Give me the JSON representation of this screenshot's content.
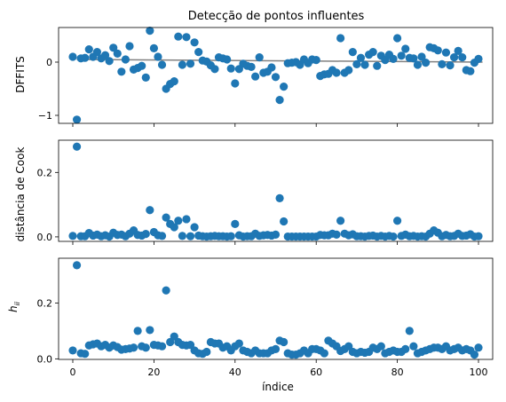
{
  "chart_data": [
    {
      "type": "scatter",
      "title": "Detecção de pontos influentes",
      "ylabel": "DFFITS",
      "xlabel": "",
      "xlim": [
        -3.5,
        103.5
      ],
      "ylim": [
        -1.15,
        0.65
      ],
      "xticks": [
        0,
        20,
        40,
        60,
        80,
        100
      ],
      "yticks": [
        -1,
        0
      ],
      "ytick_labels": [
        "−1",
        "0"
      ],
      "show_xtick_labels": false,
      "reference_line": {
        "x": [
          1,
          101
        ],
        "y": [
          0.05,
          0.0
        ]
      },
      "color": "#1f77b4",
      "points": [
        [
          0,
          0.1
        ],
        [
          1,
          -1.08
        ],
        [
          2,
          0.07
        ],
        [
          3,
          0.08
        ],
        [
          4,
          0.24
        ],
        [
          5,
          0.1
        ],
        [
          6,
          0.19
        ],
        [
          7,
          0.07
        ],
        [
          8,
          0.13
        ],
        [
          9,
          0.02
        ],
        [
          10,
          0.27
        ],
        [
          11,
          0.16
        ],
        [
          12,
          -0.18
        ],
        [
          13,
          0.05
        ],
        [
          14,
          0.3
        ],
        [
          15,
          -0.14
        ],
        [
          16,
          -0.11
        ],
        [
          17,
          -0.07
        ],
        [
          18,
          -0.29
        ],
        [
          19,
          0.59
        ],
        [
          20,
          0.26
        ],
        [
          21,
          0.1
        ],
        [
          22,
          -0.05
        ],
        [
          23,
          -0.5
        ],
        [
          24,
          -0.41
        ],
        [
          25,
          -0.36
        ],
        [
          26,
          0.48
        ],
        [
          27,
          -0.05
        ],
        [
          28,
          0.47
        ],
        [
          29,
          -0.03
        ],
        [
          30,
          0.37
        ],
        [
          31,
          0.19
        ],
        [
          32,
          0.03
        ],
        [
          33,
          0.01
        ],
        [
          34,
          -0.06
        ],
        [
          35,
          -0.13
        ],
        [
          36,
          0.09
        ],
        [
          37,
          0.07
        ],
        [
          38,
          0.05
        ],
        [
          39,
          -0.12
        ],
        [
          40,
          -0.4
        ],
        [
          41,
          -0.13
        ],
        [
          42,
          -0.03
        ],
        [
          43,
          -0.07
        ],
        [
          44,
          -0.09
        ],
        [
          45,
          -0.27
        ],
        [
          46,
          0.09
        ],
        [
          47,
          -0.2
        ],
        [
          48,
          -0.18
        ],
        [
          49,
          -0.1
        ],
        [
          50,
          -0.28
        ],
        [
          51,
          -0.71
        ],
        [
          52,
          -0.46
        ],
        [
          53,
          -0.02
        ],
        [
          54,
          -0.01
        ],
        [
          55,
          0.0
        ],
        [
          56,
          -0.05
        ],
        [
          57,
          0.05
        ],
        [
          58,
          -0.02
        ],
        [
          59,
          0.05
        ],
        [
          60,
          0.04
        ],
        [
          61,
          -0.26
        ],
        [
          62,
          -0.23
        ],
        [
          63,
          -0.22
        ],
        [
          64,
          -0.15
        ],
        [
          65,
          -0.2
        ],
        [
          66,
          0.45
        ],
        [
          67,
          -0.2
        ],
        [
          68,
          -0.15
        ],
        [
          69,
          0.19
        ],
        [
          70,
          -0.04
        ],
        [
          71,
          0.08
        ],
        [
          72,
          -0.05
        ],
        [
          73,
          0.14
        ],
        [
          74,
          0.19
        ],
        [
          75,
          -0.07
        ],
        [
          76,
          0.12
        ],
        [
          77,
          0.04
        ],
        [
          78,
          0.14
        ],
        [
          79,
          0.06
        ],
        [
          80,
          0.45
        ],
        [
          81,
          0.12
        ],
        [
          82,
          0.25
        ],
        [
          83,
          0.08
        ],
        [
          84,
          0.07
        ],
        [
          85,
          -0.05
        ],
        [
          86,
          0.1
        ],
        [
          87,
          -0.01
        ],
        [
          88,
          0.28
        ],
        [
          89,
          0.26
        ],
        [
          90,
          0.22
        ],
        [
          91,
          -0.04
        ],
        [
          92,
          0.18
        ],
        [
          93,
          -0.06
        ],
        [
          94,
          0.09
        ],
        [
          95,
          0.21
        ],
        [
          96,
          0.09
        ],
        [
          97,
          -0.15
        ],
        [
          98,
          -0.17
        ],
        [
          99,
          -0.01
        ],
        [
          100,
          0.06
        ]
      ]
    },
    {
      "type": "scatter",
      "title": "",
      "ylabel": "distância de Cook",
      "xlabel": "",
      "xlim": [
        -3.5,
        103.5
      ],
      "ylim": [
        -0.014,
        0.3
      ],
      "xticks": [
        0,
        20,
        40,
        60,
        80,
        100
      ],
      "yticks": [
        0.0,
        0.2
      ],
      "ytick_labels": [
        "0.0",
        "0.2"
      ],
      "show_xtick_labels": false,
      "color": "#1f77b4",
      "points": [
        [
          0,
          0.003
        ],
        [
          1,
          0.28
        ],
        [
          2,
          0.002
        ],
        [
          3,
          0.002
        ],
        [
          4,
          0.012
        ],
        [
          5,
          0.004
        ],
        [
          6,
          0.007
        ],
        [
          7,
          0.002
        ],
        [
          8,
          0.005
        ],
        [
          9,
          0.001
        ],
        [
          10,
          0.013
        ],
        [
          11,
          0.006
        ],
        [
          12,
          0.007
        ],
        [
          13,
          0.002
        ],
        [
          14,
          0.01
        ],
        [
          15,
          0.02
        ],
        [
          16,
          0.006
        ],
        [
          17,
          0.004
        ],
        [
          18,
          0.009
        ],
        [
          19,
          0.083
        ],
        [
          20,
          0.015
        ],
        [
          21,
          0.005
        ],
        [
          22,
          0.003
        ],
        [
          23,
          0.06
        ],
        [
          24,
          0.04
        ],
        [
          25,
          0.03
        ],
        [
          26,
          0.05
        ],
        [
          27,
          0.003
        ],
        [
          28,
          0.055
        ],
        [
          29,
          0.002
        ],
        [
          30,
          0.03
        ],
        [
          31,
          0.004
        ],
        [
          32,
          0.002
        ],
        [
          33,
          0.001
        ],
        [
          34,
          0.002
        ],
        [
          35,
          0.003
        ],
        [
          36,
          0.002
        ],
        [
          37,
          0.002
        ],
        [
          38,
          0.001
        ],
        [
          39,
          0.002
        ],
        [
          40,
          0.04
        ],
        [
          41,
          0.005
        ],
        [
          42,
          0.001
        ],
        [
          43,
          0.002
        ],
        [
          44,
          0.002
        ],
        [
          45,
          0.01
        ],
        [
          46,
          0.003
        ],
        [
          47,
          0.005
        ],
        [
          48,
          0.006
        ],
        [
          49,
          0.004
        ],
        [
          50,
          0.007
        ],
        [
          51,
          0.12
        ],
        [
          52,
          0.048
        ],
        [
          53,
          0.001
        ],
        [
          54,
          0.001
        ],
        [
          55,
          0.001
        ],
        [
          56,
          0.001
        ],
        [
          57,
          0.001
        ],
        [
          58,
          0.001
        ],
        [
          59,
          0.001
        ],
        [
          60,
          0.001
        ],
        [
          61,
          0.006
        ],
        [
          62,
          0.005
        ],
        [
          63,
          0.005
        ],
        [
          64,
          0.01
        ],
        [
          65,
          0.007
        ],
        [
          66,
          0.05
        ],
        [
          67,
          0.01
        ],
        [
          68,
          0.005
        ],
        [
          69,
          0.008
        ],
        [
          70,
          0.002
        ],
        [
          71,
          0.002
        ],
        [
          72,
          0.001
        ],
        [
          73,
          0.003
        ],
        [
          74,
          0.004
        ],
        [
          75,
          0.001
        ],
        [
          76,
          0.003
        ],
        [
          77,
          0.001
        ],
        [
          78,
          0.003
        ],
        [
          79,
          0.001
        ],
        [
          80,
          0.05
        ],
        [
          81,
          0.003
        ],
        [
          82,
          0.007
        ],
        [
          83,
          0.002
        ],
        [
          84,
          0.003
        ],
        [
          85,
          0.001
        ],
        [
          86,
          0.002
        ],
        [
          87,
          0.001
        ],
        [
          88,
          0.01
        ],
        [
          89,
          0.02
        ],
        [
          90,
          0.013
        ],
        [
          91,
          0.002
        ],
        [
          92,
          0.006
        ],
        [
          93,
          0.002
        ],
        [
          94,
          0.003
        ],
        [
          95,
          0.01
        ],
        [
          96,
          0.003
        ],
        [
          97,
          0.004
        ],
        [
          98,
          0.008
        ],
        [
          99,
          0.001
        ],
        [
          100,
          0.002
        ]
      ]
    },
    {
      "type": "scatter",
      "title": "",
      "ylabel": "h_ii",
      "xlabel": "índice",
      "xlim": [
        -3.5,
        103.5
      ],
      "ylim": [
        -0.002,
        0.36
      ],
      "xticks": [
        0,
        20,
        40,
        60,
        80,
        100
      ],
      "yticks": [
        0.0,
        0.2
      ],
      "ytick_labels": [
        "0.0",
        "0.2"
      ],
      "show_xtick_labels": true,
      "color": "#1f77b4",
      "points": [
        [
          0,
          0.03
        ],
        [
          1,
          0.335
        ],
        [
          2,
          0.02
        ],
        [
          3,
          0.018
        ],
        [
          4,
          0.048
        ],
        [
          5,
          0.052
        ],
        [
          6,
          0.055
        ],
        [
          7,
          0.045
        ],
        [
          8,
          0.05
        ],
        [
          9,
          0.04
        ],
        [
          10,
          0.048
        ],
        [
          11,
          0.042
        ],
        [
          12,
          0.033
        ],
        [
          13,
          0.035
        ],
        [
          14,
          0.037
        ],
        [
          15,
          0.04
        ],
        [
          16,
          0.1
        ],
        [
          17,
          0.045
        ],
        [
          18,
          0.04
        ],
        [
          19,
          0.103
        ],
        [
          20,
          0.05
        ],
        [
          21,
          0.048
        ],
        [
          22,
          0.045
        ],
        [
          23,
          0.245
        ],
        [
          24,
          0.06
        ],
        [
          25,
          0.08
        ],
        [
          26,
          0.06
        ],
        [
          27,
          0.05
        ],
        [
          28,
          0.048
        ],
        [
          29,
          0.05
        ],
        [
          30,
          0.03
        ],
        [
          31,
          0.02
        ],
        [
          32,
          0.018
        ],
        [
          33,
          0.025
        ],
        [
          34,
          0.06
        ],
        [
          35,
          0.055
        ],
        [
          36,
          0.055
        ],
        [
          37,
          0.04
        ],
        [
          38,
          0.045
        ],
        [
          39,
          0.03
        ],
        [
          40,
          0.045
        ],
        [
          41,
          0.055
        ],
        [
          42,
          0.03
        ],
        [
          43,
          0.025
        ],
        [
          44,
          0.02
        ],
        [
          45,
          0.03
        ],
        [
          46,
          0.02
        ],
        [
          47,
          0.02
        ],
        [
          48,
          0.02
        ],
        [
          49,
          0.03
        ],
        [
          50,
          0.035
        ],
        [
          51,
          0.065
        ],
        [
          52,
          0.06
        ],
        [
          53,
          0.02
        ],
        [
          54,
          0.015
        ],
        [
          55,
          0.015
        ],
        [
          56,
          0.02
        ],
        [
          57,
          0.03
        ],
        [
          58,
          0.02
        ],
        [
          59,
          0.035
        ],
        [
          60,
          0.035
        ],
        [
          61,
          0.03
        ],
        [
          62,
          0.02
        ],
        [
          63,
          0.065
        ],
        [
          64,
          0.055
        ],
        [
          65,
          0.045
        ],
        [
          66,
          0.028
        ],
        [
          67,
          0.035
        ],
        [
          68,
          0.045
        ],
        [
          69,
          0.025
        ],
        [
          70,
          0.02
        ],
        [
          71,
          0.025
        ],
        [
          72,
          0.022
        ],
        [
          73,
          0.025
        ],
        [
          74,
          0.04
        ],
        [
          75,
          0.035
        ],
        [
          76,
          0.045
        ],
        [
          77,
          0.02
        ],
        [
          78,
          0.025
        ],
        [
          79,
          0.03
        ],
        [
          80,
          0.025
        ],
        [
          81,
          0.025
        ],
        [
          82,
          0.035
        ],
        [
          83,
          0.1
        ],
        [
          84,
          0.045
        ],
        [
          85,
          0.02
        ],
        [
          86,
          0.025
        ],
        [
          87,
          0.03
        ],
        [
          88,
          0.035
        ],
        [
          89,
          0.04
        ],
        [
          90,
          0.04
        ],
        [
          91,
          0.035
        ],
        [
          92,
          0.045
        ],
        [
          93,
          0.03
        ],
        [
          94,
          0.035
        ],
        [
          95,
          0.04
        ],
        [
          96,
          0.03
        ],
        [
          97,
          0.035
        ],
        [
          98,
          0.03
        ],
        [
          99,
          0.015
        ],
        [
          100,
          0.04
        ]
      ]
    }
  ]
}
